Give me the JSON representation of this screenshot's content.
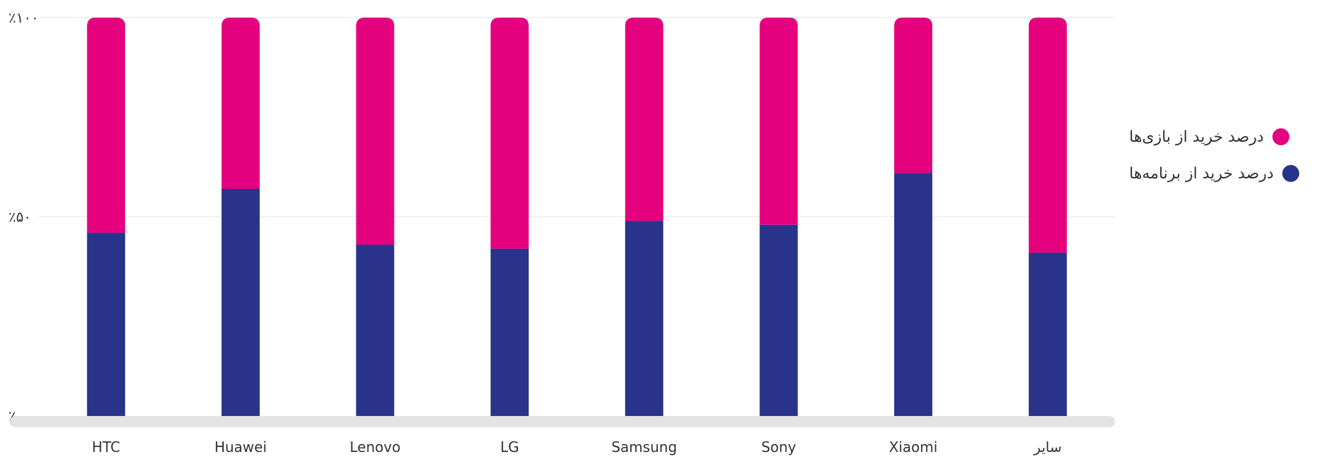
{
  "chart_data": {
    "type": "bar",
    "stacked": true,
    "categories": [
      "HTC",
      "Huawei",
      "Lenovo",
      "LG",
      "Samsung",
      "Sony",
      "Xiaomi",
      "سایر"
    ],
    "series": [
      {
        "name": "درصد خرید از برنامه‌ها",
        "color": "#283389",
        "values": [
          46,
          57,
          43,
          42,
          49,
          48,
          61,
          41
        ]
      },
      {
        "name": "درصد خرید از بازی‌ها",
        "color": "#E5007E",
        "values": [
          54,
          43,
          57,
          58,
          51,
          52,
          39,
          59
        ]
      }
    ],
    "y_ticks": [
      {
        "value": 0,
        "label": "٪۰"
      },
      {
        "value": 50,
        "label": "٪۵۰"
      },
      {
        "value": 100,
        "label": "٪۱۰۰"
      }
    ],
    "ylim": [
      0,
      100
    ],
    "grid": true,
    "legend_position": "right"
  },
  "legend": {
    "items": [
      {
        "label": "درصد خرید از بازی‌ها",
        "color": "#E5007E"
      },
      {
        "label": "درصد خرید از برنامه‌ها",
        "color": "#283389"
      }
    ]
  }
}
